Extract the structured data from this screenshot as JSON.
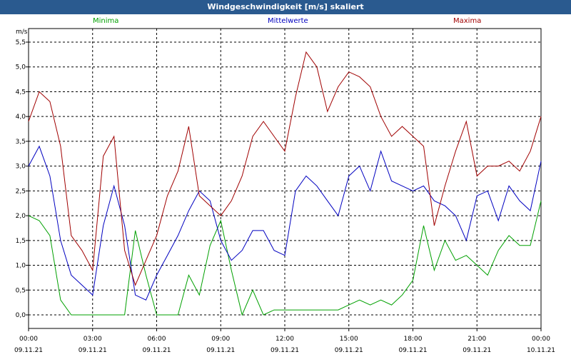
{
  "window": {
    "title": "Windgeschwindigkeit [m/s] skaliert"
  },
  "legend": [
    {
      "label": "Minima",
      "color": "#00a000"
    },
    {
      "label": "Mittelwerte",
      "color": "#0000c0"
    },
    {
      "label": "Maxima",
      "color": "#a00000"
    }
  ],
  "chart_data": {
    "type": "line",
    "ylabel": "m/s",
    "ylim": [
      0.0,
      5.5
    ],
    "yticks": [
      "0,0",
      "0,5",
      "1,0",
      "1,5",
      "2,0",
      "2,5",
      "3,0",
      "3,5",
      "4,0",
      "4,5",
      "5,0",
      "5,5"
    ],
    "xlim_hours": [
      0,
      24
    ],
    "xticks": [
      {
        "time": "00:00",
        "date": "09.11.21"
      },
      {
        "time": "03:00",
        "date": "09.11.21"
      },
      {
        "time": "06:00",
        "date": "09.11.21"
      },
      {
        "time": "09:00",
        "date": "09.11.21"
      },
      {
        "time": "12:00",
        "date": "09.11.21"
      },
      {
        "time": "15:00",
        "date": "09.11.21"
      },
      {
        "time": "18:00",
        "date": "09.11.21"
      },
      {
        "time": "21:00",
        "date": "09.11.21"
      },
      {
        "time": "00:00",
        "date": "10.11.21"
      }
    ],
    "grid": true,
    "x_hours": [
      0,
      0.5,
      1,
      1.5,
      2,
      2.5,
      3,
      3.5,
      4,
      4.5,
      5,
      5.5,
      6,
      6.5,
      7,
      7.5,
      8,
      8.5,
      9,
      9.5,
      10,
      10.5,
      11,
      11.5,
      12,
      12.5,
      13,
      13.5,
      14,
      14.5,
      15,
      15.5,
      16,
      16.5,
      17,
      17.5,
      18,
      18.5,
      19,
      19.5,
      20,
      20.5,
      21,
      21.5,
      22,
      22.5,
      23,
      23.5,
      24
    ],
    "series": [
      {
        "name": "Minima",
        "color": "#00a000",
        "values": [
          2.0,
          1.9,
          1.6,
          0.3,
          0.0,
          0.0,
          0.0,
          0.0,
          0.0,
          0.0,
          1.7,
          0.8,
          0.0,
          0.0,
          0.0,
          0.8,
          0.4,
          1.4,
          1.9,
          0.9,
          0.0,
          0.5,
          0.0,
          0.1,
          0.1,
          0.1,
          0.1,
          0.1,
          0.1,
          0.1,
          0.2,
          0.3,
          0.2,
          0.3,
          0.2,
          0.4,
          0.7,
          1.8,
          0.9,
          1.5,
          1.1,
          1.2,
          1.0,
          0.8,
          1.3,
          1.6,
          1.4,
          1.4,
          2.3
        ]
      },
      {
        "name": "Mittelwerte",
        "color": "#0000c0",
        "values": [
          3.0,
          3.4,
          2.8,
          1.5,
          0.8,
          0.6,
          0.4,
          1.8,
          2.6,
          1.8,
          0.4,
          0.3,
          0.8,
          1.2,
          1.6,
          2.1,
          2.5,
          2.3,
          1.5,
          1.1,
          1.3,
          1.7,
          1.7,
          1.3,
          1.2,
          2.5,
          2.8,
          2.6,
          2.3,
          2.0,
          2.8,
          3.0,
          2.5,
          3.3,
          2.7,
          2.6,
          2.5,
          2.6,
          2.3,
          2.2,
          2.0,
          1.5,
          2.4,
          2.5,
          1.9,
          2.6,
          2.3,
          2.1,
          3.1
        ]
      },
      {
        "name": "Maxima",
        "color": "#a00000",
        "values": [
          3.9,
          4.5,
          4.3,
          3.4,
          1.6,
          1.3,
          0.9,
          3.2,
          3.6,
          1.3,
          0.6,
          1.1,
          1.6,
          2.4,
          2.9,
          3.8,
          2.4,
          2.2,
          2.0,
          2.3,
          2.8,
          3.6,
          3.9,
          3.6,
          3.3,
          4.4,
          5.3,
          5.0,
          4.1,
          4.6,
          4.9,
          4.8,
          4.6,
          4.0,
          3.6,
          3.8,
          3.6,
          3.4,
          1.8,
          2.6,
          3.3,
          3.9,
          2.8,
          3.0,
          3.0,
          3.1,
          2.9,
          3.3,
          4.0
        ]
      }
    ]
  }
}
